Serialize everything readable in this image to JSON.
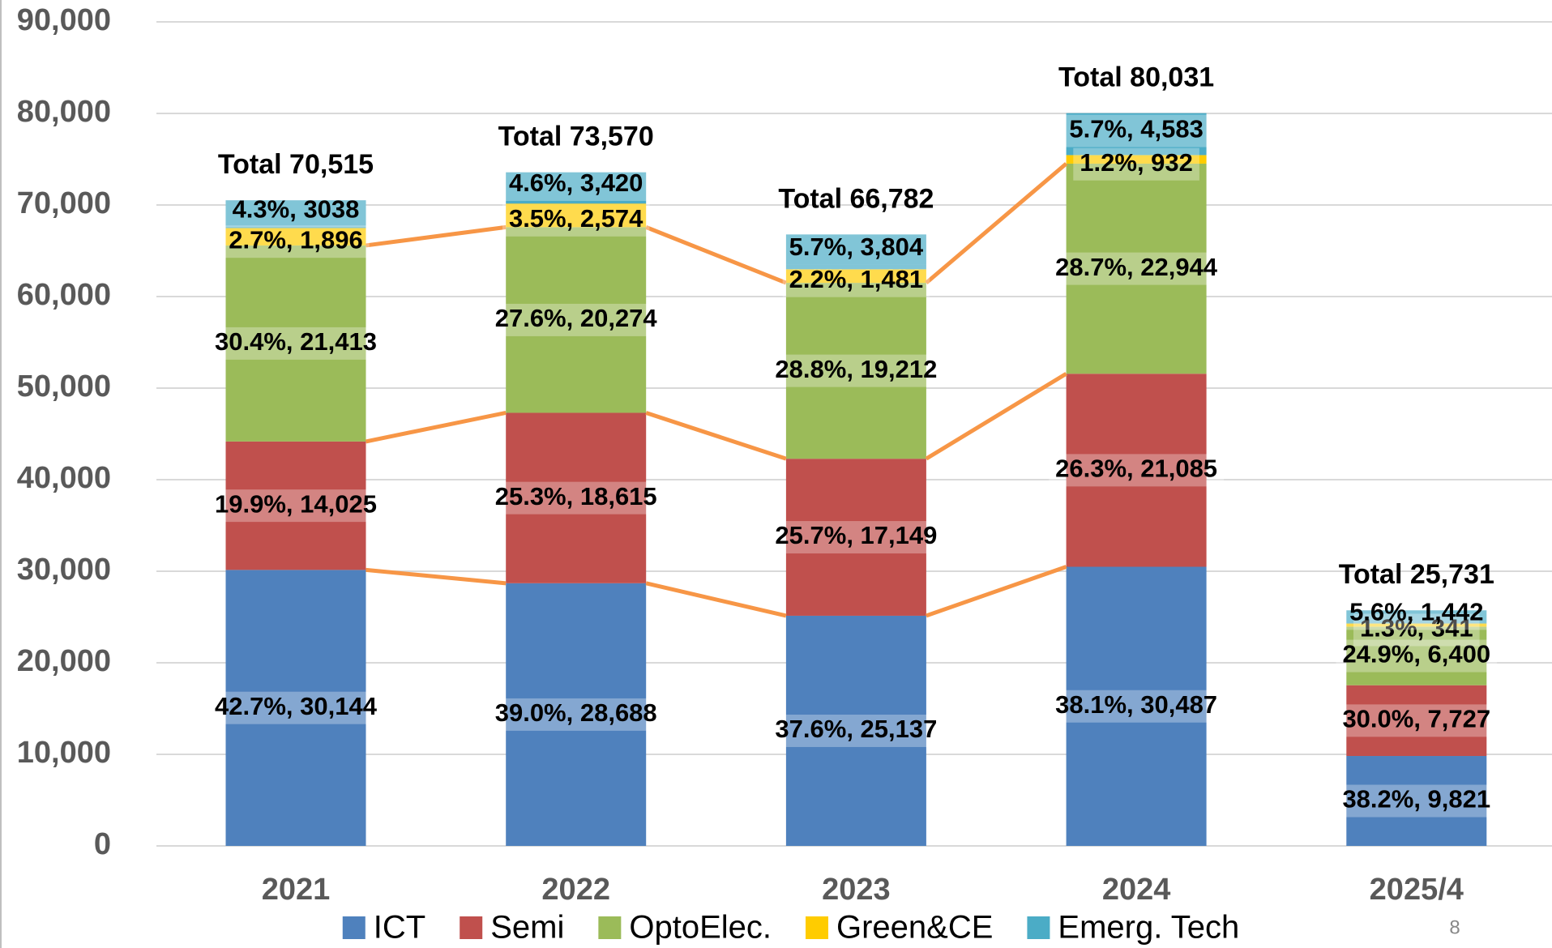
{
  "chart_data": {
    "type": "stacked_bar",
    "categories": [
      "2021",
      "2022",
      "2023",
      "2024",
      "2025/4"
    ],
    "series": [
      {
        "name": "ICT",
        "color": "#4f81bd",
        "values": [
          30144,
          28688,
          25137,
          30487,
          9821
        ],
        "value_labels": [
          "42.7%, 30,144",
          "39.0%, 28,688",
          "37.6%, 25,137",
          "38.1%, 30,487",
          "38.2%, 9,821"
        ]
      },
      {
        "name": "Semi",
        "color": "#c0504d",
        "values": [
          14025,
          18615,
          17149,
          21085,
          7727
        ],
        "value_labels": [
          "19.9%, 14,025",
          "25.3%, 18,615",
          "25.7%, 17,149",
          "26.3%, 21,085",
          "30.0%, 7,727"
        ]
      },
      {
        "name": "OptoElec.",
        "color": "#9bbb59",
        "values": [
          21413,
          20274,
          19212,
          22944,
          6400
        ],
        "value_labels": [
          "30.4%, 21,413",
          "27.6%, 20,274",
          "28.8%, 19,212",
          "28.7%, 22,944",
          "24.9%, 6,400"
        ]
      },
      {
        "name": "Green&CE",
        "color": "#ffcc00",
        "values": [
          1896,
          2574,
          1481,
          932,
          341
        ],
        "value_labels": [
          "2.7%, 1,896",
          "3.5%, 2,574",
          "2.2%, 1,481",
          "1.2%, 932",
          "1.3%, 341"
        ]
      },
      {
        "name": "Emerg. Tech",
        "color": "#4bacc6",
        "values": [
          3038,
          3420,
          3804,
          4583,
          1442
        ],
        "value_labels": [
          "4.3%, 3038",
          "4.6%, 3,420",
          "5.7%, 3,804",
          "5.7%, 4,583",
          "5.6%, 1,442"
        ]
      }
    ],
    "total_labels": [
      "Total 70,515",
      "Total 73,570",
      "Total 66,782",
      "Total 80,031",
      "Total 25,731"
    ],
    "ylim": [
      0,
      90000
    ],
    "yticks": [
      0,
      {
        "value": 10000,
        "label": "10,000"
      },
      {
        "value": 20000,
        "label": "20,000"
      },
      {
        "value": 30000,
        "label": "30,000"
      },
      {
        "value": 40000,
        "label": "40,000"
      },
      {
        "value": 50000,
        "label": "50,000"
      },
      {
        "value": 60000,
        "label": "60,000"
      },
      {
        "value": 70000,
        "label": "70,000"
      },
      {
        "value": 80000,
        "label": "80,000"
      },
      {
        "value": 90000,
        "label": "90,000"
      }
    ],
    "grid": true,
    "legend": "bottom",
    "page_number": "8"
  }
}
